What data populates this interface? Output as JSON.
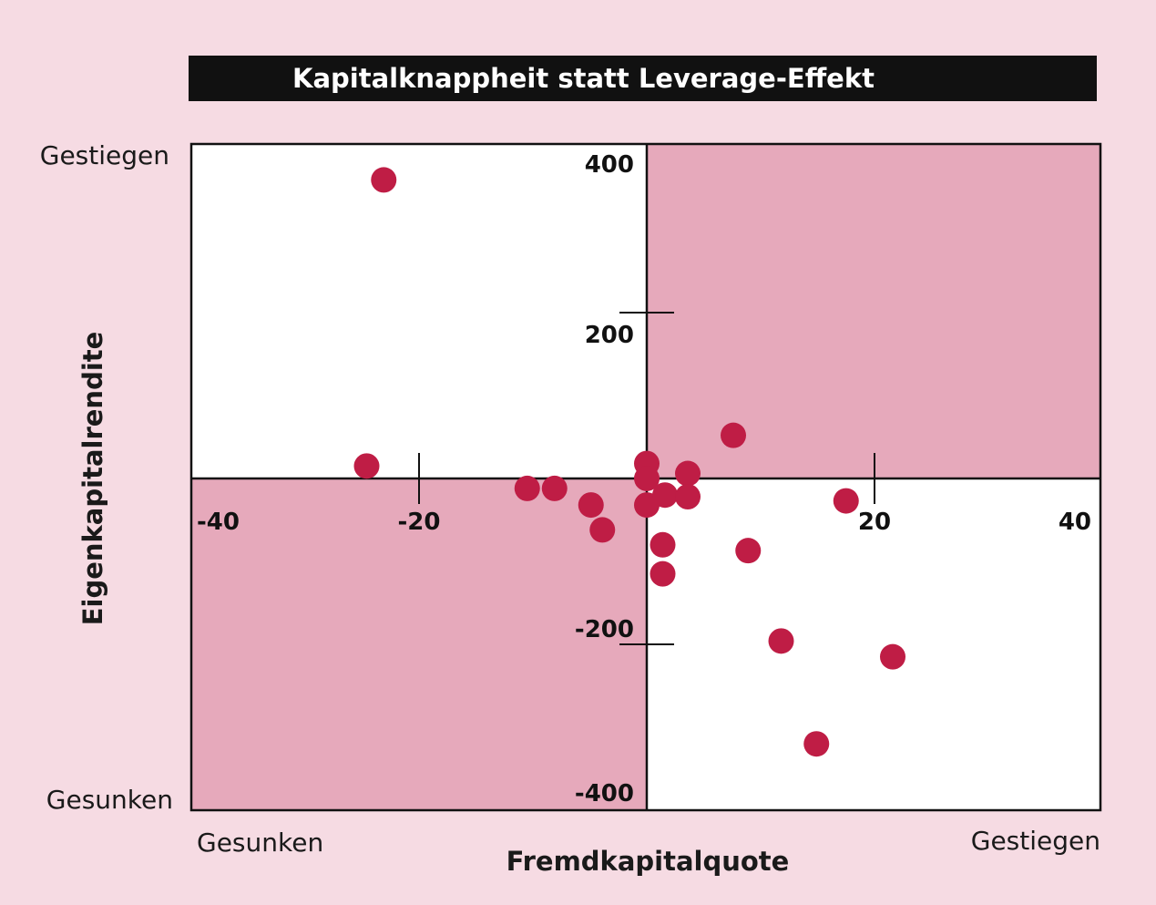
{
  "chart_data": {
    "type": "scatter",
    "title": "Kapitalknappheit statt Leverage-Effekt",
    "xlabel": "Fremdkapitalquote",
    "ylabel": "Eigenkapitalrendite",
    "xlim": [
      -40,
      40
    ],
    "ylim": [
      -400,
      400
    ],
    "x_ticks": [
      -40,
      -20,
      20,
      40
    ],
    "x_tick_labels": [
      "-40",
      "-20",
      "20",
      "40"
    ],
    "y_ticks": [
      400,
      200,
      -200,
      -400
    ],
    "y_tick_labels": [
      "400",
      "200",
      "-200",
      "-400"
    ],
    "x_end_labels": {
      "low": "Gesunken",
      "high": "Gestiegen"
    },
    "y_end_labels": {
      "low": "Gesunken",
      "high": "Gestiegen"
    },
    "quadrant_colors": {
      "shaded": "#e6a9bb",
      "plain": "#ffffff"
    },
    "point_color": "#bf1d45",
    "grid": false,
    "points": [
      {
        "x": -23.1,
        "y": 360
      },
      {
        "x": -24.6,
        "y": 15
      },
      {
        "x": -10.5,
        "y": -12
      },
      {
        "x": -8.1,
        "y": -12
      },
      {
        "x": -4.9,
        "y": -32
      },
      {
        "x": -3.9,
        "y": -62
      },
      {
        "x": 0.0,
        "y": 18
      },
      {
        "x": 0.0,
        "y": 0
      },
      {
        "x": 0.0,
        "y": -32
      },
      {
        "x": 1.6,
        "y": -20
      },
      {
        "x": 3.6,
        "y": 6
      },
      {
        "x": 3.6,
        "y": -22
      },
      {
        "x": 7.6,
        "y": 52
      },
      {
        "x": 1.4,
        "y": -80
      },
      {
        "x": 1.4,
        "y": -115
      },
      {
        "x": 8.9,
        "y": -87
      },
      {
        "x": 17.5,
        "y": -27
      },
      {
        "x": 11.8,
        "y": -196
      },
      {
        "x": 21.6,
        "y": -215
      },
      {
        "x": 14.9,
        "y": -320
      }
    ]
  }
}
